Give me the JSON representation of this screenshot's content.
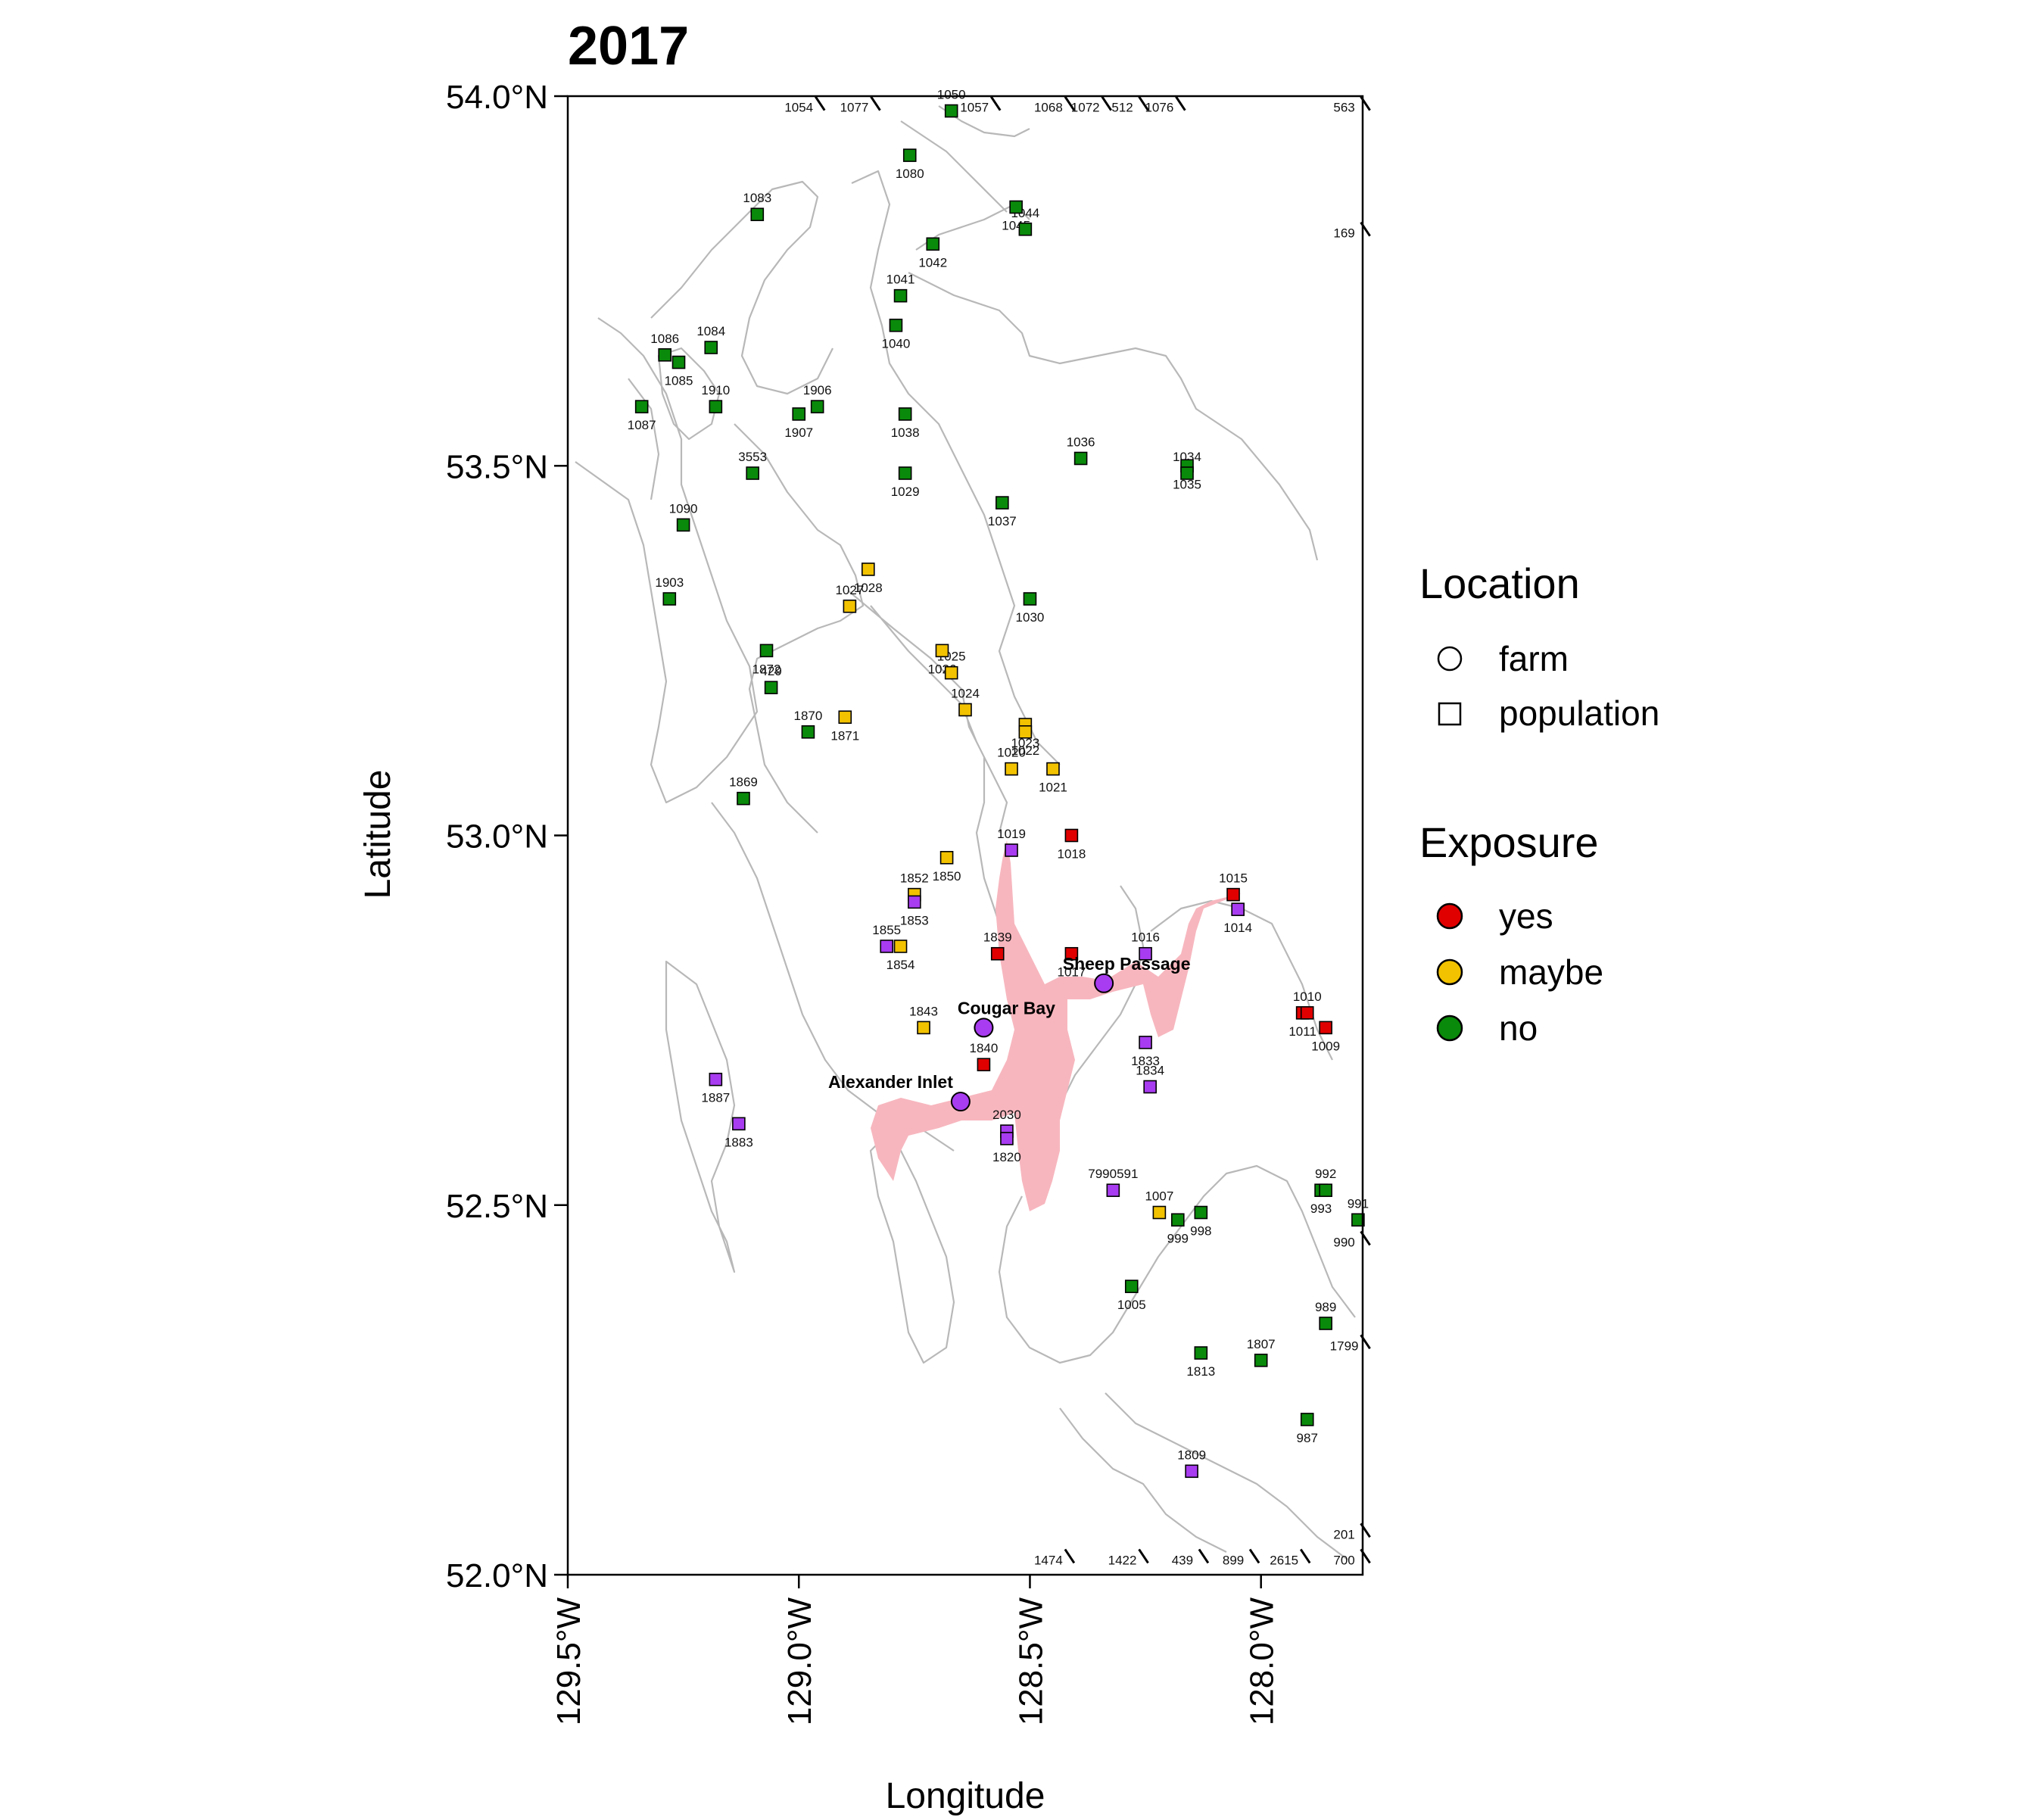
{
  "title": "2017",
  "x_axis": {
    "label": "Longitude",
    "ticks": [
      {
        "value": -129.5,
        "label": "129.5°W"
      },
      {
        "value": -129.0,
        "label": "129.0°W"
      },
      {
        "value": -128.5,
        "label": "128.5°W"
      },
      {
        "value": -128.0,
        "label": "128.0°W"
      }
    ]
  },
  "y_axis": {
    "label": "Latitude",
    "ticks": [
      {
        "value": 54.0,
        "label": "54.0°N"
      },
      {
        "value": 53.5,
        "label": "53.5°N"
      },
      {
        "value": 53.0,
        "label": "53.0°N"
      },
      {
        "value": 52.5,
        "label": "52.5°N"
      },
      {
        "value": 52.0,
        "label": "52.0°N"
      }
    ]
  },
  "map_extent": {
    "lon": [
      -129.5,
      -127.78
    ],
    "lat": [
      52.0,
      54.0
    ]
  },
  "colors": {
    "yes": "#e00000",
    "maybe": "#f2c200",
    "no": "#0a8a0a",
    "farm": "#a83cf0",
    "unknown": "#a83cf0",
    "exposure_zone": "#f7b6be",
    "coastline": "#b8b8b8"
  },
  "legend": {
    "location": {
      "title": "Location",
      "items": [
        {
          "shape": "circle",
          "label": "farm"
        },
        {
          "shape": "square",
          "label": "population"
        }
      ]
    },
    "exposure": {
      "title": "Exposure",
      "items": [
        {
          "key": "yes",
          "label": "yes"
        },
        {
          "key": "maybe",
          "label": "maybe"
        },
        {
          "key": "no",
          "label": "no"
        }
      ]
    },
    "placement": "right"
  },
  "farms": [
    {
      "name": "Cougar Bay",
      "lon": -128.6,
      "lat": 52.74
    },
    {
      "name": "Sheep Passage",
      "lon": -128.34,
      "lat": 52.8
    },
    {
      "name": "Alexander Inlet",
      "lon": -128.65,
      "lat": 52.64
    }
  ],
  "populations": [
    {
      "id": "1050",
      "lon": -128.67,
      "lat": 53.98,
      "exposure": "no"
    },
    {
      "id": "1080",
      "lon": -128.76,
      "lat": 53.92,
      "exposure": "no"
    },
    {
      "id": "1083",
      "lon": -129.09,
      "lat": 53.84,
      "exposure": "no"
    },
    {
      "id": "1045",
      "lon": -128.53,
      "lat": 53.85,
      "exposure": "no"
    },
    {
      "id": "1044",
      "lon": -128.51,
      "lat": 53.82,
      "exposure": "no"
    },
    {
      "id": "1042",
      "lon": -128.71,
      "lat": 53.8,
      "exposure": "no"
    },
    {
      "id": "1041",
      "lon": -128.78,
      "lat": 53.73,
      "exposure": "no"
    },
    {
      "id": "1040",
      "lon": -128.79,
      "lat": 53.69,
      "exposure": "no"
    },
    {
      "id": "1086",
      "lon": -129.29,
      "lat": 53.65,
      "exposure": "no"
    },
    {
      "id": "1085",
      "lon": -129.26,
      "lat": 53.64,
      "exposure": "no"
    },
    {
      "id": "1084",
      "lon": -129.19,
      "lat": 53.66,
      "exposure": "no"
    },
    {
      "id": "1087",
      "lon": -129.34,
      "lat": 53.58,
      "exposure": "no"
    },
    {
      "id": "1910",
      "lon": -129.18,
      "lat": 53.58,
      "exposure": "no"
    },
    {
      "id": "1907",
      "lon": -129.0,
      "lat": 53.57,
      "exposure": "no"
    },
    {
      "id": "1906",
      "lon": -128.96,
      "lat": 53.58,
      "exposure": "no"
    },
    {
      "id": "1038",
      "lon": -128.77,
      "lat": 53.57,
      "exposure": "no"
    },
    {
      "id": "3553",
      "lon": -129.1,
      "lat": 53.49,
      "exposure": "no"
    },
    {
      "id": "1029",
      "lon": -128.77,
      "lat": 53.49,
      "exposure": "no"
    },
    {
      "id": "1036",
      "lon": -128.39,
      "lat": 53.51,
      "exposure": "no"
    },
    {
      "id": "1035",
      "lon": -128.16,
      "lat": 53.5,
      "exposure": "no"
    },
    {
      "id": "1034",
      "lon": -128.16,
      "lat": 53.49,
      "exposure": "no"
    },
    {
      "id": "1037",
      "lon": -128.56,
      "lat": 53.45,
      "exposure": "no"
    },
    {
      "id": "1090",
      "lon": -129.25,
      "lat": 53.42,
      "exposure": "no"
    },
    {
      "id": "1028",
      "lon": -128.85,
      "lat": 53.36,
      "exposure": "maybe"
    },
    {
      "id": "1027",
      "lon": -128.89,
      "lat": 53.31,
      "exposure": "maybe"
    },
    {
      "id": "1030",
      "lon": -128.5,
      "lat": 53.32,
      "exposure": "no"
    },
    {
      "id": "1903",
      "lon": -129.28,
      "lat": 53.32,
      "exposure": "no"
    },
    {
      "id": "1026",
      "lon": -128.69,
      "lat": 53.25,
      "exposure": "maybe"
    },
    {
      "id": "1025",
      "lon": -128.67,
      "lat": 53.22,
      "exposure": "maybe"
    },
    {
      "id": "1872",
      "lon": -129.07,
      "lat": 53.25,
      "exposure": "no"
    },
    {
      "id": "429",
      "lon": -129.06,
      "lat": 53.2,
      "exposure": "no"
    },
    {
      "id": "1871",
      "lon": -128.9,
      "lat": 53.16,
      "exposure": "maybe"
    },
    {
      "id": "1024",
      "lon": -128.64,
      "lat": 53.17,
      "exposure": "maybe"
    },
    {
      "id": "1023",
      "lon": -128.51,
      "lat": 53.15,
      "exposure": "maybe"
    },
    {
      "id": "1870",
      "lon": -128.98,
      "lat": 53.14,
      "exposure": "no"
    },
    {
      "id": "1022",
      "lon": -128.51,
      "lat": 53.14,
      "exposure": "maybe"
    },
    {
      "id": "1020",
      "lon": -128.54,
      "lat": 53.09,
      "exposure": "maybe"
    },
    {
      "id": "1021",
      "lon": -128.45,
      "lat": 53.09,
      "exposure": "maybe"
    },
    {
      "id": "1869",
      "lon": -129.12,
      "lat": 53.05,
      "exposure": "no"
    },
    {
      "id": "1018",
      "lon": -128.41,
      "lat": 53.0,
      "exposure": "yes"
    },
    {
      "id": "1019",
      "lon": -128.54,
      "lat": 52.98,
      "exposure": "unknown"
    },
    {
      "id": "1850",
      "lon": -128.68,
      "lat": 52.97,
      "exposure": "maybe"
    },
    {
      "id": "1852",
      "lon": -128.75,
      "lat": 52.92,
      "exposure": "maybe"
    },
    {
      "id": "1853",
      "lon": -128.75,
      "lat": 52.91,
      "exposure": "unknown"
    },
    {
      "id": "1015",
      "lon": -128.06,
      "lat": 52.92,
      "exposure": "yes"
    },
    {
      "id": "1014",
      "lon": -128.05,
      "lat": 52.9,
      "exposure": "unknown"
    },
    {
      "id": "1855",
      "lon": -128.81,
      "lat": 52.85,
      "exposure": "unknown"
    },
    {
      "id": "1854",
      "lon": -128.78,
      "lat": 52.85,
      "exposure": "maybe"
    },
    {
      "id": "1839",
      "lon": -128.57,
      "lat": 52.84,
      "exposure": "yes"
    },
    {
      "id": "1017",
      "lon": -128.41,
      "lat": 52.84,
      "exposure": "yes"
    },
    {
      "id": "1016",
      "lon": -128.25,
      "lat": 52.84,
      "exposure": "unknown"
    },
    {
      "id": "1011",
      "lon": -127.91,
      "lat": 52.76,
      "exposure": "yes"
    },
    {
      "id": "1010",
      "lon": -127.9,
      "lat": 52.76,
      "exposure": "yes"
    },
    {
      "id": "1009",
      "lon": -127.86,
      "lat": 52.74,
      "exposure": "yes"
    },
    {
      "id": "1843",
      "lon": -128.73,
      "lat": 52.74,
      "exposure": "maybe"
    },
    {
      "id": "1833",
      "lon": -128.25,
      "lat": 52.72,
      "exposure": "unknown"
    },
    {
      "id": "1840",
      "lon": -128.6,
      "lat": 52.69,
      "exposure": "yes"
    },
    {
      "id": "1887",
      "lon": -129.18,
      "lat": 52.67,
      "exposure": "unknown"
    },
    {
      "id": "1834",
      "lon": -128.24,
      "lat": 52.66,
      "exposure": "unknown"
    },
    {
      "id": "1883",
      "lon": -129.13,
      "lat": 52.61,
      "exposure": "unknown"
    },
    {
      "id": "2030",
      "lon": -128.55,
      "lat": 52.6,
      "exposure": "unknown"
    },
    {
      "id": "1820",
      "lon": -128.55,
      "lat": 52.59,
      "exposure": "unknown"
    },
    {
      "id": "7990591",
      "lon": -128.32,
      "lat": 52.52,
      "exposure": "unknown"
    },
    {
      "id": "993",
      "lon": -127.87,
      "lat": 52.52,
      "exposure": "no"
    },
    {
      "id": "992",
      "lon": -127.86,
      "lat": 52.52,
      "exposure": "no"
    },
    {
      "id": "998",
      "lon": -128.13,
      "lat": 52.49,
      "exposure": "no"
    },
    {
      "id": "1007",
      "lon": -128.22,
      "lat": 52.49,
      "exposure": "maybe"
    },
    {
      "id": "999",
      "lon": -128.18,
      "lat": 52.48,
      "exposure": "no"
    },
    {
      "id": "991",
      "lon": -127.79,
      "lat": 52.48,
      "exposure": "no"
    },
    {
      "id": "1005",
      "lon": -128.28,
      "lat": 52.39,
      "exposure": "no"
    },
    {
      "id": "989",
      "lon": -127.86,
      "lat": 52.34,
      "exposure": "no"
    },
    {
      "id": "1813",
      "lon": -128.13,
      "lat": 52.3,
      "exposure": "no"
    },
    {
      "id": "1807",
      "lon": -128.0,
      "lat": 52.29,
      "exposure": "no"
    },
    {
      "id": "987",
      "lon": -127.9,
      "lat": 52.21,
      "exposure": "no"
    },
    {
      "id": "1809",
      "lon": -128.15,
      "lat": 52.14,
      "exposure": "unknown"
    }
  ],
  "label_only": [
    {
      "id": "1054",
      "lon": -129.0,
      "lat": 53.985
    },
    {
      "id": "1077",
      "lon": -128.88,
      "lat": 53.985
    },
    {
      "id": "1057",
      "lon": -128.62,
      "lat": 53.985
    },
    {
      "id": "1068",
      "lon": -128.46,
      "lat": 53.985
    },
    {
      "id": "1072",
      "lon": -128.38,
      "lat": 53.985
    },
    {
      "id": "512",
      "lon": -128.3,
      "lat": 53.985
    },
    {
      "id": "1076",
      "lon": -128.22,
      "lat": 53.985
    },
    {
      "id": "563",
      "lon": -127.82,
      "lat": 53.985
    },
    {
      "id": "169",
      "lon": -127.82,
      "lat": 53.815
    },
    {
      "id": "990",
      "lon": -127.82,
      "lat": 52.45
    },
    {
      "id": "1799",
      "lon": -127.82,
      "lat": 52.31
    },
    {
      "id": "201",
      "lon": -127.82,
      "lat": 52.055
    },
    {
      "id": "1474",
      "lon": -128.46,
      "lat": 52.02
    },
    {
      "id": "1422",
      "lon": -128.3,
      "lat": 52.02
    },
    {
      "id": "439",
      "lon": -128.17,
      "lat": 52.02
    },
    {
      "id": "899",
      "lon": -128.06,
      "lat": 52.02
    },
    {
      "id": "2615",
      "lon": -127.95,
      "lat": 52.02
    },
    {
      "id": "700",
      "lon": -127.82,
      "lat": 52.02
    }
  ]
}
